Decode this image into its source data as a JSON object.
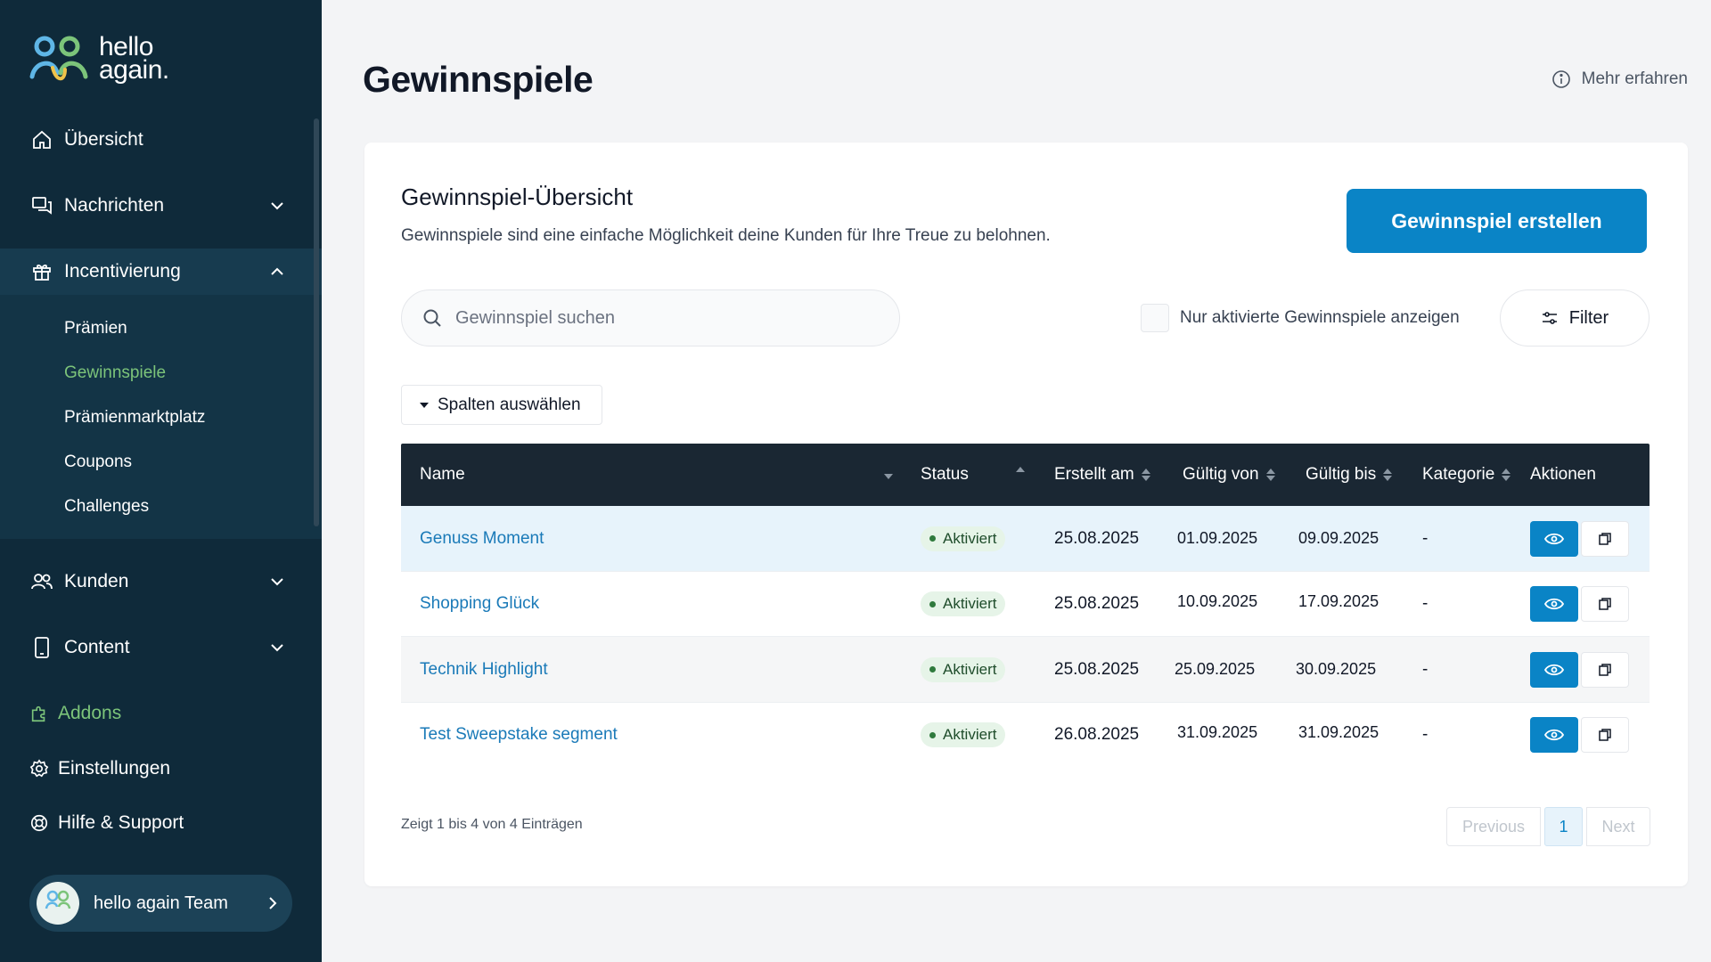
{
  "brand": {
    "line1": "hello",
    "line2": "again."
  },
  "sidebar": {
    "items": [
      {
        "label": "Übersicht",
        "icon": "home-icon"
      },
      {
        "label": "Nachrichten",
        "icon": "messages-icon"
      },
      {
        "label": "Incentivierung",
        "icon": "gift-icon"
      },
      {
        "label": "Kunden",
        "icon": "users-icon"
      },
      {
        "label": "Content",
        "icon": "mobile-icon"
      },
      {
        "label": "Addons",
        "icon": "puzzle-icon"
      },
      {
        "label": "Einstellungen",
        "icon": "gear-icon"
      },
      {
        "label": "Hilfe & Support",
        "icon": "lifebuoy-icon"
      }
    ],
    "subitems": [
      "Prämien",
      "Gewinnspiele",
      "Prämienmarktplatz",
      "Coupons",
      "Challenges"
    ],
    "current_subitem": "Gewinnspiele",
    "user": {
      "name": "hello again Team",
      "avatar_text": "team"
    }
  },
  "page": {
    "title": "Gewinnspiele",
    "learn_more": "Mehr erfahren"
  },
  "card": {
    "title": "Gewinnspiel-Übersicht",
    "description": "Gewinnspiele sind eine einfache Möglichkeit deine Kunden für Ihre Treue zu belohnen.",
    "create_button": "Gewinnspiel erstellen",
    "search_placeholder": "Gewinnspiel suchen",
    "only_active_label": "Nur aktivierte Gewinnspiele anzeigen",
    "filter_label": "Filter",
    "columns_button": "Spalten auswählen"
  },
  "table": {
    "headers": [
      "Name",
      "Status",
      "Erstellt am",
      "Gültig von",
      "Gültig bis",
      "Kategorie",
      "Aktionen"
    ],
    "rows": [
      {
        "name": "Genuss Moment",
        "status": "Aktiviert",
        "created": "25.08.2025",
        "valid_from": "01.09.2025",
        "valid_to": "09.09.2025",
        "category": "-"
      },
      {
        "name": "Shopping Glück",
        "status": "Aktiviert",
        "created": "25.08.2025",
        "valid_from": "10.09.2025",
        "valid_to": "17.09.2025",
        "category": "-"
      },
      {
        "name": "Technik Highlight",
        "status": "Aktiviert",
        "created": "25.08.2025",
        "valid_from": "25.09.2025",
        "valid_to": "30.09.2025",
        "category": "-"
      },
      {
        "name": "Test Sweepstake segment",
        "status": "Aktiviert",
        "created": "26.08.2025",
        "valid_from": "31.09.2025",
        "valid_to": "31.09.2025",
        "category": "-"
      }
    ]
  },
  "footer": {
    "entries_text": "Zeigt 1 bis 4 von 4 Einträgen",
    "previous": "Previous",
    "page": "1",
    "next": "Next"
  },
  "colors": {
    "sidebar_bg": "#0f2a3a",
    "accent": "#0a84c6",
    "green": "#7cc47a",
    "table_header": "#1a2733"
  }
}
